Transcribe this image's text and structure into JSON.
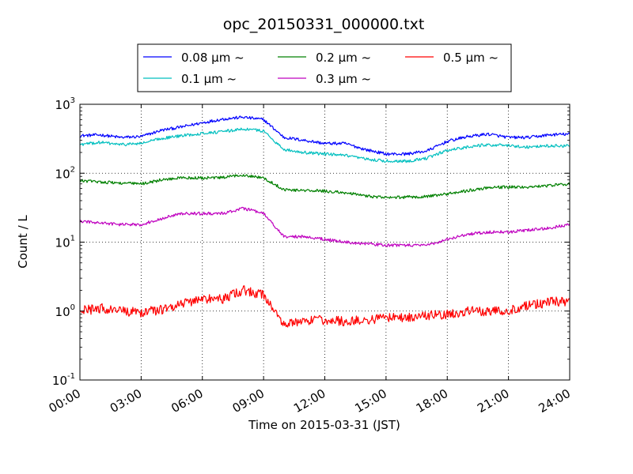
{
  "chart_data": {
    "type": "line",
    "title": "opc_20150331_000000.txt",
    "xlabel": "Time on 2015-03-31 (JST)",
    "ylabel": "Count / L",
    "y_scale": "log",
    "ylim": [
      0.1,
      1000
    ],
    "y_ticks": [
      {
        "base": "10",
        "exp": "-1"
      },
      {
        "base": "10",
        "exp": "0"
      },
      {
        "base": "10",
        "exp": "1"
      },
      {
        "base": "10",
        "exp": "2"
      },
      {
        "base": "10",
        "exp": "3"
      }
    ],
    "xlim": [
      "00:00",
      "24:00"
    ],
    "x_ticks": [
      "00:00",
      "03:00",
      "06:00",
      "09:00",
      "12:00",
      "15:00",
      "18:00",
      "21:00",
      "24:00"
    ],
    "grid": true,
    "legend_position": "top",
    "series": [
      {
        "name": "0.08 μm ~",
        "color": "#0000ff",
        "x": [
          "00:00",
          "01:00",
          "02:00",
          "03:00",
          "04:00",
          "05:00",
          "06:00",
          "07:00",
          "08:00",
          "09:00",
          "10:00",
          "11:00",
          "12:00",
          "13:00",
          "14:00",
          "15:00",
          "16:00",
          "17:00",
          "18:00",
          "19:00",
          "20:00",
          "21:00",
          "22:00",
          "23:00",
          "24:00"
        ],
        "values": [
          350,
          360,
          330,
          340,
          420,
          470,
          540,
          610,
          650,
          600,
          330,
          300,
          270,
          270,
          220,
          190,
          190,
          210,
          290,
          340,
          370,
          330,
          330,
          360,
          370
        ]
      },
      {
        "name": "0.1 μm ~",
        "color": "#00bfbf",
        "x": [
          "00:00",
          "01:00",
          "02:00",
          "03:00",
          "04:00",
          "05:00",
          "06:00",
          "07:00",
          "08:00",
          "09:00",
          "10:00",
          "11:00",
          "12:00",
          "13:00",
          "14:00",
          "15:00",
          "16:00",
          "17:00",
          "18:00",
          "19:00",
          "20:00",
          "21:00",
          "22:00",
          "23:00",
          "24:00"
        ],
        "values": [
          260,
          280,
          260,
          270,
          320,
          350,
          380,
          400,
          440,
          410,
          220,
          200,
          190,
          180,
          160,
          150,
          150,
          165,
          215,
          240,
          260,
          250,
          240,
          250,
          250
        ]
      },
      {
        "name": "0.2 μm ~",
        "color": "#008000",
        "x": [
          "00:00",
          "01:00",
          "02:00",
          "03:00",
          "04:00",
          "05:00",
          "06:00",
          "07:00",
          "08:00",
          "09:00",
          "10:00",
          "11:00",
          "12:00",
          "13:00",
          "14:00",
          "15:00",
          "16:00",
          "17:00",
          "18:00",
          "19:00",
          "20:00",
          "21:00",
          "22:00",
          "23:00",
          "24:00"
        ],
        "values": [
          78,
          75,
          72,
          70,
          80,
          86,
          85,
          86,
          95,
          85,
          58,
          56,
          55,
          52,
          47,
          44,
          45,
          46,
          50,
          56,
          62,
          63,
          63,
          66,
          70
        ]
      },
      {
        "name": "0.3 μm ~",
        "color": "#bf00bf",
        "x": [
          "00:00",
          "01:00",
          "02:00",
          "03:00",
          "04:00",
          "05:00",
          "06:00",
          "07:00",
          "08:00",
          "09:00",
          "10:00",
          "11:00",
          "12:00",
          "13:00",
          "14:00",
          "15:00",
          "16:00",
          "17:00",
          "18:00",
          "19:00",
          "20:00",
          "21:00",
          "22:00",
          "23:00",
          "24:00"
        ],
        "values": [
          20,
          19,
          18,
          18,
          22,
          26,
          26,
          26,
          31,
          26,
          12,
          12,
          11,
          10,
          9.5,
          9,
          9,
          9,
          11,
          13,
          14,
          14,
          15,
          16,
          18
        ]
      },
      {
        "name": "0.5 μm ~",
        "color": "#ff0000",
        "x": [
          "00:00",
          "01:00",
          "02:00",
          "03:00",
          "04:00",
          "05:00",
          "06:00",
          "07:00",
          "08:00",
          "09:00",
          "10:00",
          "11:00",
          "12:00",
          "13:00",
          "14:00",
          "15:00",
          "16:00",
          "17:00",
          "18:00",
          "19:00",
          "20:00",
          "21:00",
          "22:00",
          "23:00",
          "24:00"
        ],
        "values": [
          1.0,
          1.1,
          1.0,
          0.95,
          1.05,
          1.3,
          1.5,
          1.5,
          2.0,
          1.7,
          0.65,
          0.7,
          0.75,
          0.7,
          0.75,
          0.8,
          0.8,
          0.85,
          0.9,
          1.0,
          1.0,
          1.0,
          1.2,
          1.35,
          1.4
        ]
      }
    ]
  }
}
